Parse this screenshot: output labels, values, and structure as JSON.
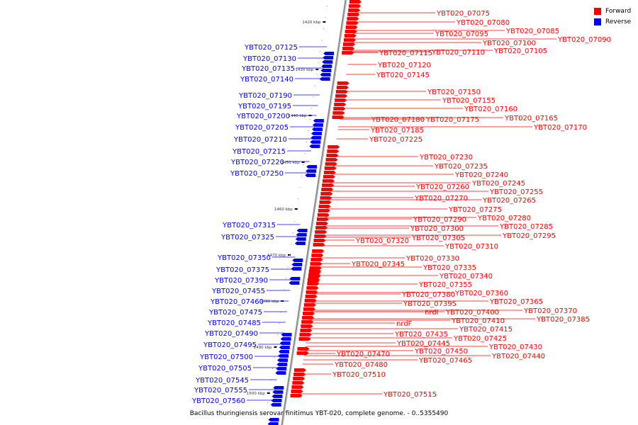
{
  "legend": [
    {
      "label": "Forward",
      "color": "#ff0000"
    },
    {
      "label": "Reverse",
      "color": "#0000ff"
    }
  ],
  "caption": "Bacillus thuringiensis serovar finitimus YBT-020, complete genome. - 0..5355490",
  "scale_ticks": [
    "1420 kbp",
    "1430 kbp",
    "1440 kbp",
    "1450 kbp",
    "1460 kbp",
    "1470 kbp",
    "1480 kbp",
    "1490 kbp",
    "1500 kbp"
  ],
  "forward_labels": [
    "YBT020_07075",
    "YBT020_07080",
    "YBT020_07085",
    "YBT020_07095",
    "YBT020_07090",
    "YBT020_07100",
    "YBT020_07115",
    "YBT020_07110",
    "YBT020_07105",
    "YBT020_07120",
    "YBT020_07145",
    "YBT020_07150",
    "YBT020_07155",
    "YBT020_07160",
    "YBT020_07180",
    "YBT020_07175",
    "YBT020_07165",
    "YBT020_07185",
    "YBT020_07170",
    "YBT020_07225",
    "YBT020_07230",
    "YBT020_07235",
    "YBT020_07240",
    "YBT020_07245",
    "YBT020_07260",
    "YBT020_07255",
    "YBT020_07270",
    "YBT020_07265",
    "YBT020_07275",
    "YBT020_07290",
    "YBT020_07280",
    "YBT020_07285",
    "YBT020_07300",
    "YBT020_07305",
    "YBT020_07295",
    "YBT020_07320",
    "YBT020_07310",
    "YBT020_07330",
    "YBT020_07345",
    "YBT020_07335",
    "YBT020_07340",
    "YBT020_07355",
    "YBT020_07380",
    "YBT020_07360",
    "YBT020_07365",
    "YBT020_07395",
    "nrdI",
    "YBT020_07400",
    "YBT020_07370",
    "YBT020_07410",
    "YBT020_07385",
    "nrdF",
    "YBT020_07415",
    "YBT020_07435",
    "YBT020_07425",
    "YBT020_07445",
    "YBT020_07430",
    "YBT020_07450",
    "YBT020_07470",
    "YBT020_07440",
    "YBT020_07465",
    "YBT020_07480",
    "YBT020_07510",
    "YBT020_07515"
  ],
  "reverse_labels": [
    "YBT020_07125",
    "YBT020_07130",
    "YBT020_07135",
    "YBT020_07140",
    "YBT020_07190",
    "YBT020_07195",
    "YBT020_07200",
    "YBT020_07205",
    "YBT020_07210",
    "YBT020_07215",
    "YBT020_07220",
    "YBT020_07250",
    "YBT020_07315",
    "YBT020_07325",
    "YBT020_07350",
    "YBT020_07375",
    "YBT020_07390",
    "YBT020_07455",
    "YBT020_07460",
    "YBT020_07475",
    "YBT020_07485",
    "YBT020_07490",
    "YBT020_07495",
    "YBT020_07500",
    "YBT020_07505",
    "YBT020_07545",
    "YBT020_07555",
    "YBT020_07560"
  ]
}
